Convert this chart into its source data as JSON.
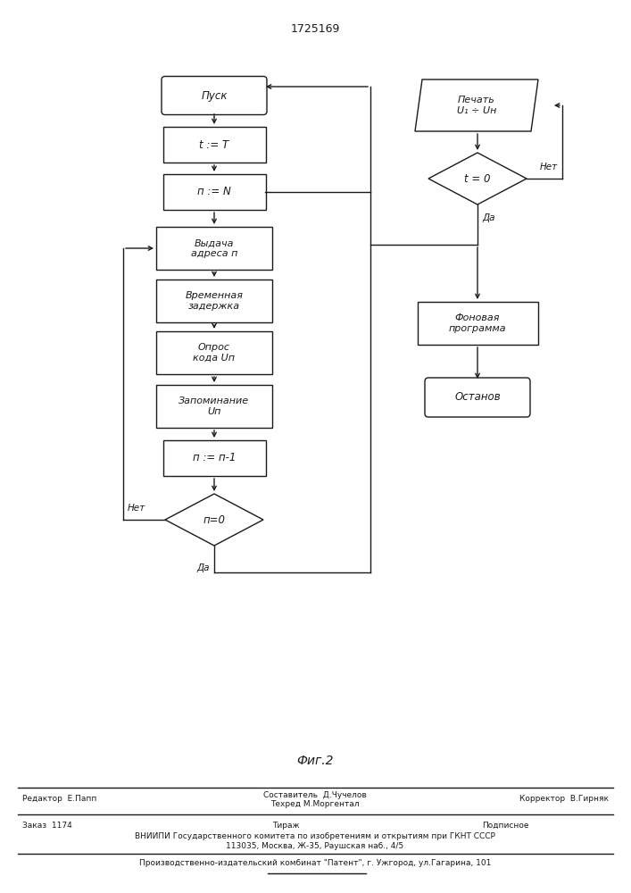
{
  "title": "1725169",
  "fig_caption": "Фиг.2",
  "bg_color": "#ffffff",
  "line_color": "#1a1a1a",
  "font_color": "#1a1a1a",
  "footer": {
    "line1_left": "Редактор  Е.Папп",
    "line1_center_top": "Составитель  Д.Чучелов",
    "line1_center_bot": "Техред М.Моргентал",
    "line1_right": "Корректор  В.Гирняк",
    "line2_left": "Заказ  1174",
    "line2_center": "Тираж",
    "line2_right": "Подписное",
    "line3": "ВНИИПИ Государственного комитета по изобретениям и открытиям при ГКНТ СССР",
    "line4": "113035, Москва, Ж-35, Раушская наб., 4/5",
    "line5": "Производственно-издательский комбинат \"Патент\", г. Ужгород, ул.Гагарина, 101"
  }
}
